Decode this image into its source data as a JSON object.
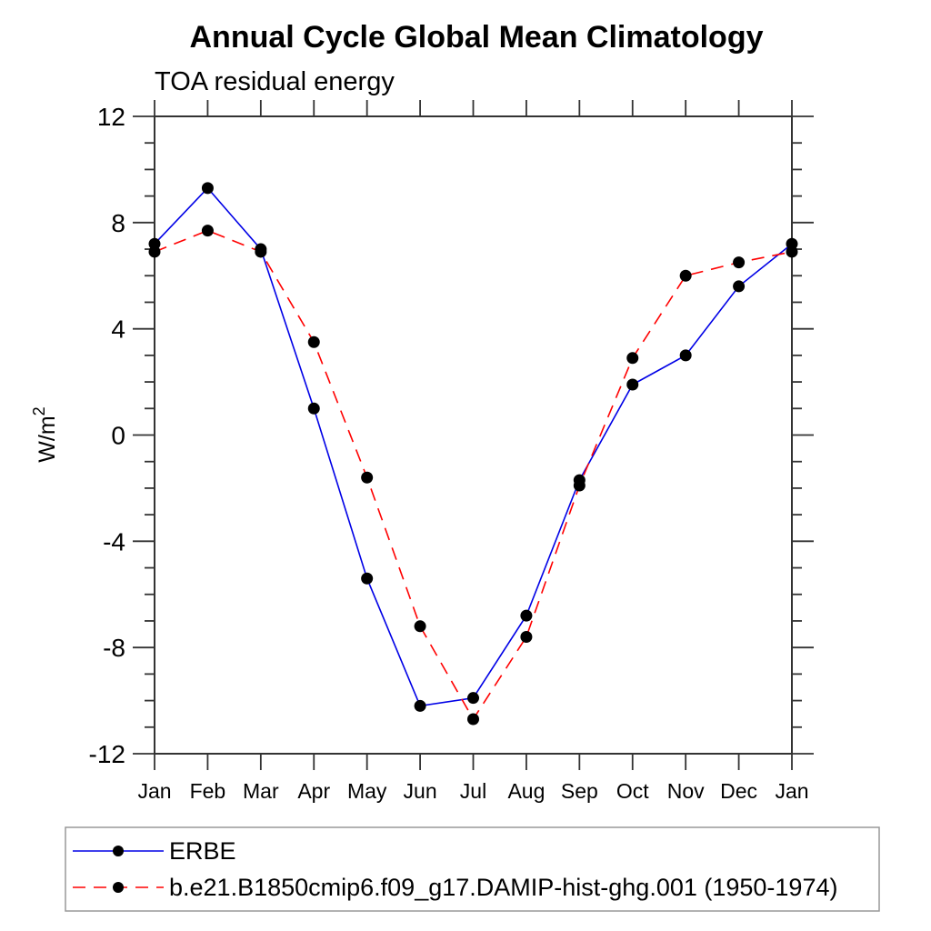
{
  "chart_data": {
    "type": "line",
    "title": "Annual Cycle Global Mean Climatology",
    "subtitle": "TOA residual energy",
    "ylabel_base": "W/m",
    "ylabel_exp": "2",
    "categories": [
      "Jan",
      "Feb",
      "Mar",
      "Apr",
      "May",
      "Jun",
      "Jul",
      "Aug",
      "Sep",
      "Oct",
      "Nov",
      "Dec",
      "Jan"
    ],
    "ylim": [
      -12,
      12
    ],
    "ytick_labels": [
      12,
      8,
      4,
      0,
      -4,
      -8,
      -12
    ],
    "ytick_major_step": 4,
    "ytick_minor_step": 1,
    "grid": false,
    "legend_position": "bottom-left-box",
    "marker": "filled-circle",
    "marker_color": "#000000",
    "series": [
      {
        "name": "ERBE",
        "color": "#0000e6",
        "line_style": "solid",
        "values": [
          7.2,
          9.3,
          7.0,
          1.0,
          -5.4,
          -10.2,
          -9.9,
          -6.8,
          -1.7,
          1.9,
          3.0,
          5.6,
          7.2
        ]
      },
      {
        "name": "b.e21.B1850cmip6.f09_g17.DAMIP-hist-ghg.001 (1950-1974)",
        "color": "#ff0000",
        "line_style": "dashed",
        "values": [
          6.9,
          7.7,
          6.9,
          3.5,
          -1.6,
          -7.2,
          -10.7,
          -7.6,
          -1.9,
          2.9,
          6.0,
          6.5,
          6.9
        ]
      }
    ]
  }
}
